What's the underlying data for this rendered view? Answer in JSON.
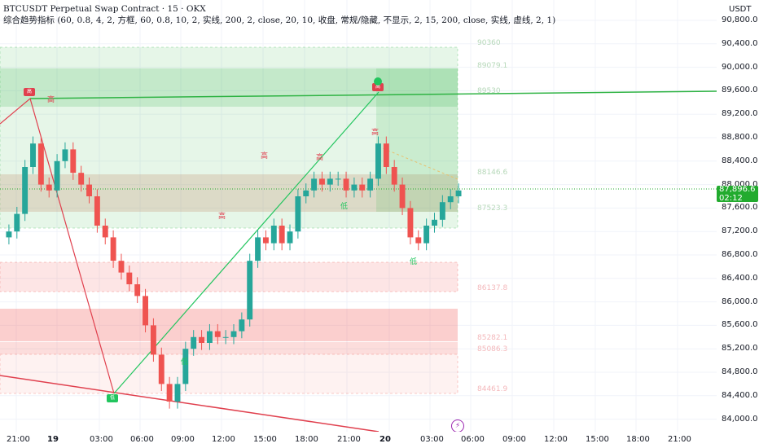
{
  "header": {
    "title": "BTCUSDT Perpetual Swap Contract · 15 · OKX",
    "indicator": "综合趋势指标 (60, 0.8, 4, 2, 方框, 60, 0.8, 10, 2, 实线, 200, 2, close, 20, 10, 收盘, 常规/隐藏, 不显示, 2, 15, 200, close, 实线, 虚线, 2, 1)"
  },
  "price_axis": {
    "currency": "USDT",
    "ticks": [
      "90,800.0",
      "90,400.0",
      "90,000.0",
      "89,600.0",
      "89,200.0",
      "88,800.0",
      "88,400.0",
      "88,000.0",
      "87,600.0",
      "87,200.0",
      "86,800.0",
      "86,400.0",
      "86,000.0",
      "85,600.0",
      "85,200.0",
      "84,800.0",
      "84,400.0",
      "84,000.0"
    ],
    "last_price": "87,896.6",
    "countdown": "02:12"
  },
  "time_axis": {
    "ticks": [
      "21:00",
      "19",
      "03:00",
      "06:00",
      "09:00",
      "12:00",
      "15:00",
      "18:00",
      "21:00",
      "20",
      "03:00",
      "06:00",
      "09:00",
      "12:00",
      "15:00",
      "18:00",
      "21:00"
    ]
  },
  "zones": {
    "labels": [
      "90360",
      "89079.1",
      "89530",
      "88146.6",
      "87523.3",
      "86137.8",
      "85282.1",
      "85086.3",
      "84461.9"
    ]
  },
  "markers": {
    "high": "高",
    "low": "低",
    "tag_top_left": "高",
    "tag_top_right": "高",
    "tag_bottom": "低"
  },
  "colors": {
    "up": "#26a69a",
    "down": "#ef5350",
    "line_green": "#2fb344",
    "line_red": "#e0404e"
  },
  "chart_data": {
    "type": "candlestick",
    "symbol": "BTCUSDT",
    "interval": "15",
    "ylim": [
      83850,
      91000
    ],
    "close_series": [
      87200,
      87500,
      88300,
      88700,
      88000,
      87900,
      88400,
      88600,
      88200,
      88000,
      87800,
      87300,
      87100,
      86700,
      86500,
      86300,
      86100,
      85600,
      85100,
      84600,
      84300,
      84600,
      85200,
      85400,
      85300,
      85500,
      85400,
      85400,
      85500,
      85700,
      86700,
      87100,
      87000,
      87300,
      87000,
      87200,
      87800,
      87900,
      88100,
      88000,
      88100,
      88100,
      87900,
      88000,
      87900,
      88100,
      88700,
      88300,
      88000,
      87600,
      87100,
      87000,
      87300,
      87400,
      87700,
      87800,
      87900
    ]
  }
}
